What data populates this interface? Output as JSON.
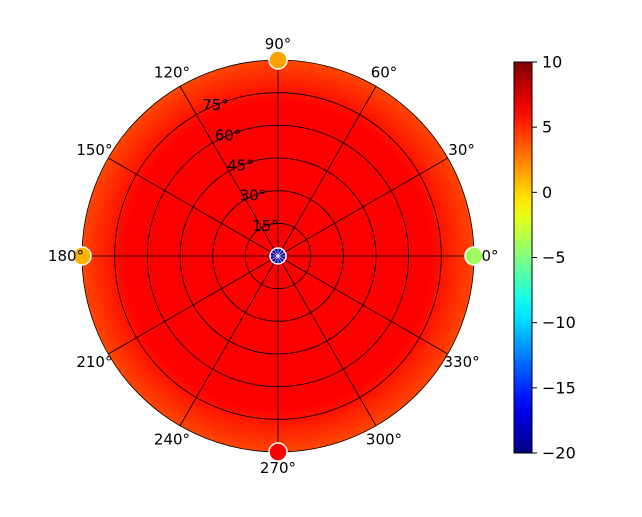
{
  "chart_data": {
    "type": "heatmap",
    "subtype": "polar",
    "angle_ticks": [
      {
        "deg": 0,
        "label": "0°"
      },
      {
        "deg": 30,
        "label": "30°"
      },
      {
        "deg": 60,
        "label": "60°"
      },
      {
        "deg": 90,
        "label": "90°"
      },
      {
        "deg": 120,
        "label": "120°"
      },
      {
        "deg": 150,
        "label": "150°"
      },
      {
        "deg": 180,
        "label": "180°"
      },
      {
        "deg": 210,
        "label": "210°"
      },
      {
        "deg": 240,
        "label": "240°"
      },
      {
        "deg": 270,
        "label": "270°"
      },
      {
        "deg": 300,
        "label": "300°"
      },
      {
        "deg": 330,
        "label": "330°"
      }
    ],
    "radial_ticks": [
      {
        "value": 15,
        "label": "15°"
      },
      {
        "value": 30,
        "label": "30°"
      },
      {
        "value": 45,
        "label": "45°"
      },
      {
        "value": 60,
        "label": "60°"
      },
      {
        "value": 75,
        "label": "75°"
      }
    ],
    "radial_range": [
      0,
      90
    ],
    "colorbar": {
      "range": [
        -20,
        10
      ],
      "ticks": [
        10,
        5,
        0,
        -5,
        -10,
        -15,
        -20
      ],
      "tick_labels": [
        "10",
        "5",
        "0",
        "−5",
        "−10",
        "−15",
        "−20"
      ],
      "colormap": "jet"
    },
    "field": {
      "background_value": 6.3,
      "edge_value": 4.2,
      "center_value": -19,
      "points": [
        {
          "angle": 0,
          "r": 90,
          "value": -4
        },
        {
          "angle": 90,
          "r": 90,
          "value": 1.5
        },
        {
          "angle": 180,
          "r": 90,
          "value": 1
        },
        {
          "angle": 270,
          "r": 90,
          "value": 6.5
        }
      ]
    },
    "grid": true,
    "legend": "none"
  }
}
